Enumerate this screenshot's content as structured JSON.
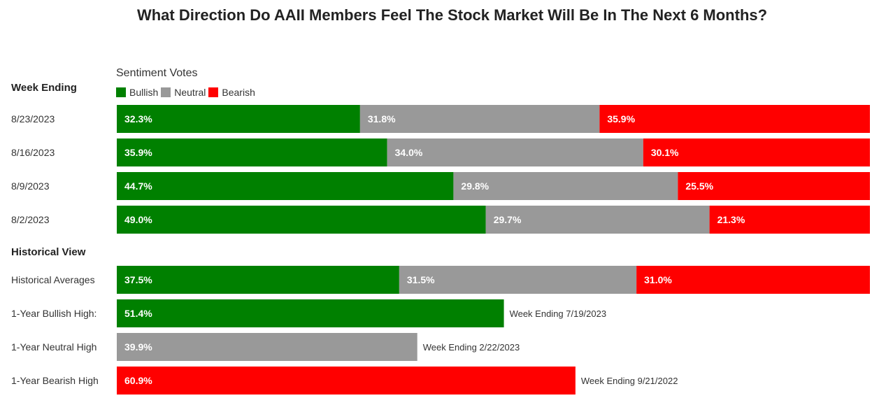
{
  "title": "What Direction Do AAII Members Feel The Stock Market Will Be In The Next 6 Months?",
  "legend": {
    "title": "Sentiment Votes",
    "items": [
      {
        "label": "Bullish",
        "color": "#008000"
      },
      {
        "label": "Neutral",
        "color": "#999999"
      },
      {
        "label": "Bearish",
        "color": "#ff0000"
      }
    ]
  },
  "sections": {
    "week_ending": "Week Ending",
    "historical": "Historical View"
  },
  "chart_data": {
    "type": "bar",
    "orientation": "horizontal",
    "stacked": true,
    "categories": [
      "8/23/2023",
      "8/16/2023",
      "8/9/2023",
      "8/2/2023",
      "Historical Averages"
    ],
    "series": [
      {
        "name": "Bullish",
        "color": "#008000",
        "values": [
          32.3,
          35.9,
          44.7,
          49.0,
          37.5
        ],
        "labels": [
          "32.3%",
          "35.9%",
          "44.7%",
          "49.0%",
          "37.5%"
        ]
      },
      {
        "name": "Neutral",
        "color": "#999999",
        "values": [
          31.8,
          34.0,
          29.8,
          29.7,
          31.5
        ],
        "labels": [
          "31.8%",
          "34.0%",
          "29.8%",
          "29.7%",
          "31.5%"
        ]
      },
      {
        "name": "Bearish",
        "color": "#ff0000",
        "values": [
          35.9,
          30.1,
          25.5,
          21.3,
          31.0
        ],
        "labels": [
          "35.9%",
          "30.1%",
          "25.5%",
          "21.3%",
          "31.0%"
        ]
      }
    ],
    "highs": [
      {
        "label": "1-Year Bullish High:",
        "value": 51.4,
        "value_label": "51.4%",
        "color": "#008000",
        "note": "Week Ending 7/19/2023"
      },
      {
        "label": "1-Year Neutral High",
        "value": 39.9,
        "value_label": "39.9%",
        "color": "#999999",
        "note": "Week Ending 2/22/2023"
      },
      {
        "label": "1-Year Bearish High",
        "value": 60.9,
        "value_label": "60.9%",
        "color": "#ff0000",
        "note": "Week Ending 9/21/2022"
      }
    ],
    "xlim": [
      0,
      100
    ],
    "grid": false,
    "legend_position": "top-left"
  }
}
